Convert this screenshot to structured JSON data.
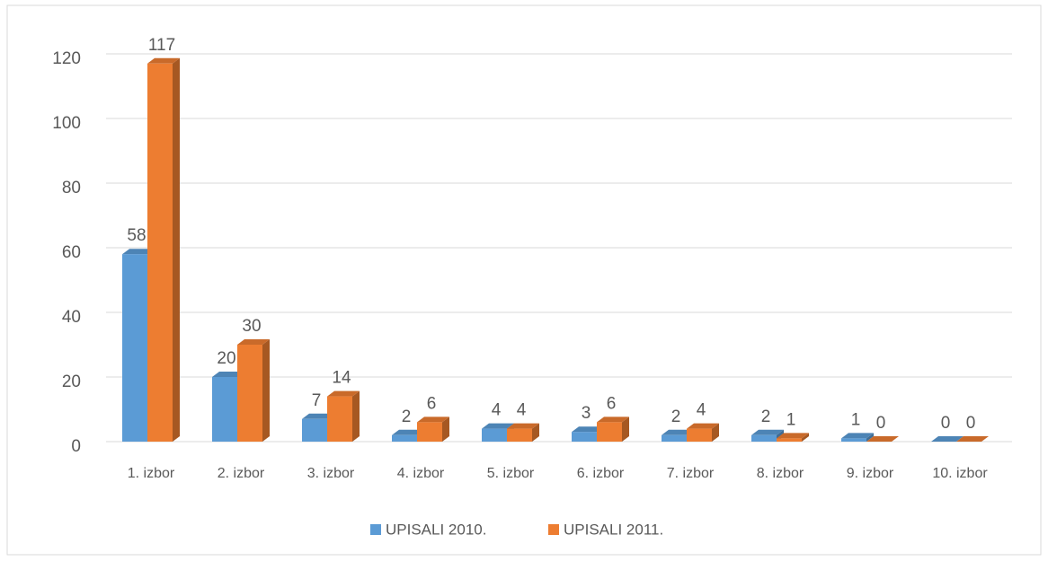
{
  "chart_data": {
    "type": "bar3d",
    "categories": [
      "1. izbor",
      "2. izbor",
      "3. izbor",
      "4. izbor",
      "5. izbor",
      "6. izbor",
      "7. izbor",
      "8. izbor",
      "9. izbor",
      "10. izbor"
    ],
    "series": [
      {
        "name": "UPISALI 2010.",
        "color": "#5b9bd5",
        "values": [
          58,
          20,
          7,
          2,
          4,
          3,
          2,
          2,
          1,
          0
        ]
      },
      {
        "name": "UPISALI 2011.",
        "color": "#ed7d31",
        "values": [
          117,
          30,
          14,
          6,
          4,
          6,
          4,
          1,
          0,
          0
        ]
      }
    ],
    "ylim": [
      0,
      120
    ],
    "yticks": [
      0,
      20,
      40,
      60,
      80,
      100,
      120
    ],
    "grid": true,
    "legend": "bottom",
    "data_labels": true
  }
}
